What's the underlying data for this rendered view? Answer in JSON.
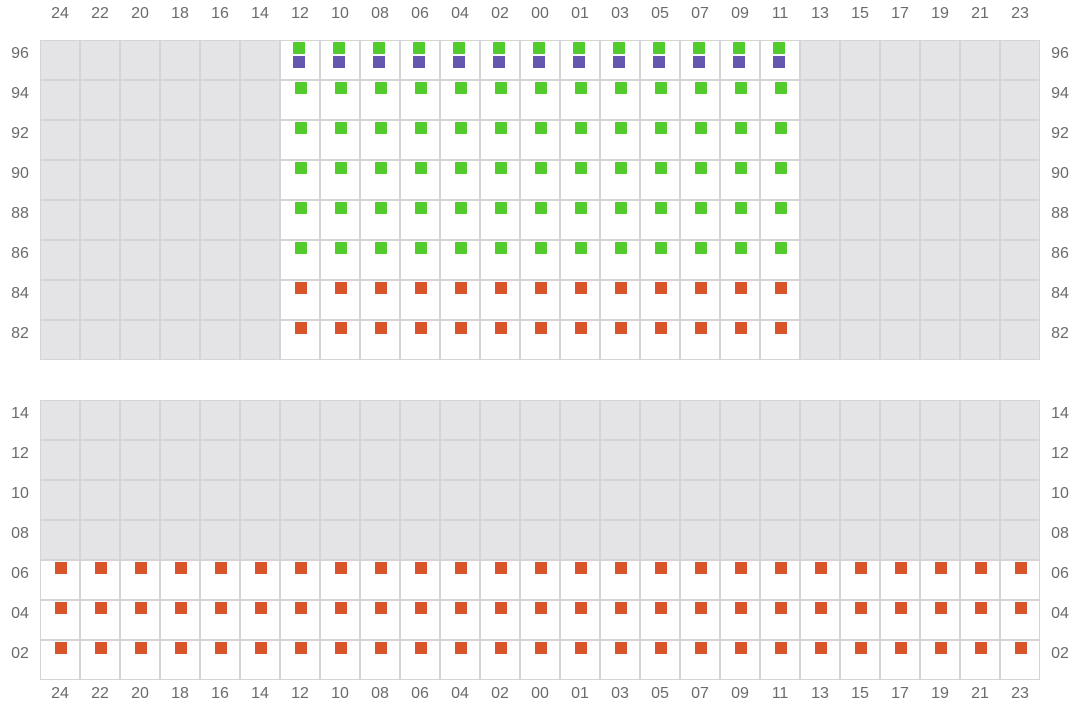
{
  "columns": [
    "24",
    "22",
    "20",
    "18",
    "16",
    "14",
    "12",
    "10",
    "08",
    "06",
    "04",
    "02",
    "00",
    "01",
    "03",
    "05",
    "07",
    "09",
    "11",
    "13",
    "15",
    "17",
    "19",
    "21",
    "23"
  ],
  "colors": {
    "unavailable": "#e4e4e7",
    "available": "#ffffff",
    "border": "#d4d4d8",
    "green": "#52cc2c",
    "purple": "#6557b0",
    "orange": "#d9542a"
  },
  "grids": [
    {
      "rows": [
        {
          "label": "96",
          "active_columns": [
            "12",
            "10",
            "08",
            "06",
            "04",
            "02",
            "00",
            "01",
            "03",
            "05",
            "07",
            "09",
            "11"
          ],
          "markers": [
            "green",
            "purple"
          ]
        },
        {
          "label": "94",
          "active_columns": [
            "12",
            "10",
            "08",
            "06",
            "04",
            "02",
            "00",
            "01",
            "03",
            "05",
            "07",
            "09",
            "11"
          ],
          "markers": [
            "green"
          ]
        },
        {
          "label": "92",
          "active_columns": [
            "12",
            "10",
            "08",
            "06",
            "04",
            "02",
            "00",
            "01",
            "03",
            "05",
            "07",
            "09",
            "11"
          ],
          "markers": [
            "green"
          ]
        },
        {
          "label": "90",
          "active_columns": [
            "12",
            "10",
            "08",
            "06",
            "04",
            "02",
            "00",
            "01",
            "03",
            "05",
            "07",
            "09",
            "11"
          ],
          "markers": [
            "green"
          ]
        },
        {
          "label": "88",
          "active_columns": [
            "12",
            "10",
            "08",
            "06",
            "04",
            "02",
            "00",
            "01",
            "03",
            "05",
            "07",
            "09",
            "11"
          ],
          "markers": [
            "green"
          ]
        },
        {
          "label": "86",
          "active_columns": [
            "12",
            "10",
            "08",
            "06",
            "04",
            "02",
            "00",
            "01",
            "03",
            "05",
            "07",
            "09",
            "11"
          ],
          "markers": [
            "green"
          ]
        },
        {
          "label": "84",
          "active_columns": [
            "12",
            "10",
            "08",
            "06",
            "04",
            "02",
            "00",
            "01",
            "03",
            "05",
            "07",
            "09",
            "11"
          ],
          "markers": [
            "orange"
          ]
        },
        {
          "label": "82",
          "active_columns": [
            "12",
            "10",
            "08",
            "06",
            "04",
            "02",
            "00",
            "01",
            "03",
            "05",
            "07",
            "09",
            "11"
          ],
          "markers": [
            "orange"
          ]
        }
      ]
    },
    {
      "rows": [
        {
          "label": "14",
          "active_columns": [],
          "markers": []
        },
        {
          "label": "12",
          "active_columns": [],
          "markers": []
        },
        {
          "label": "10",
          "active_columns": [],
          "markers": []
        },
        {
          "label": "08",
          "active_columns": [],
          "markers": []
        },
        {
          "label": "06",
          "active_columns": "all",
          "markers": [
            "orange"
          ]
        },
        {
          "label": "04",
          "active_columns": "all",
          "markers": [
            "orange"
          ]
        },
        {
          "label": "02",
          "active_columns": "all",
          "markers": [
            "orange"
          ]
        }
      ]
    }
  ]
}
